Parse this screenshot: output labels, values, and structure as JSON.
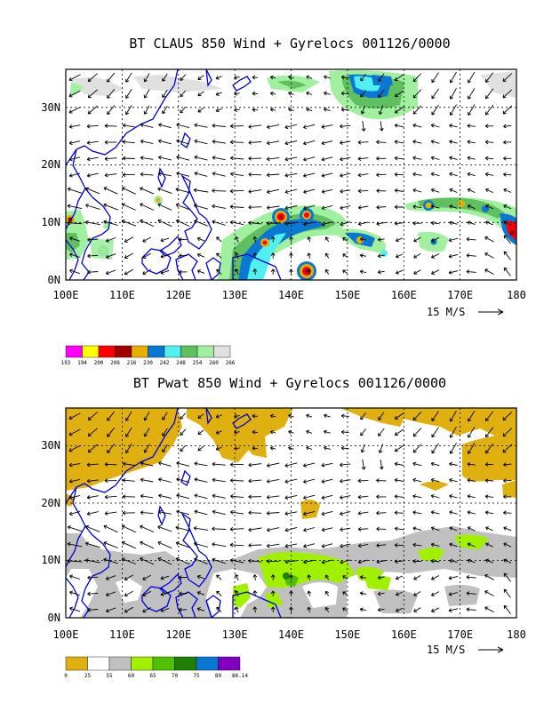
{
  "panels": [
    {
      "id": "claus",
      "title": "BT CLAUS 850 Wind + Gyrelocs 001126/0000",
      "x_ticks": [
        "100E",
        "110E",
        "120E",
        "130E",
        "140E",
        "150E",
        "160E",
        "170E",
        "180"
      ],
      "y_ticks": [
        "0N",
        "10N",
        "20N",
        "30N"
      ],
      "vector_label": "15 M/S",
      "colorbar": {
        "labels": [
          "193",
          "194",
          "200",
          "208",
          "216",
          "230",
          "242",
          "248",
          "254",
          "260",
          "266"
        ],
        "colors": [
          "#ff00ff",
          "#ffff00",
          "#ff0000",
          "#a00000",
          "#e6b000",
          "#0a78d2",
          "#50f0f0",
          "#60c060",
          "#a0f0a0",
          "#e0e0e0"
        ]
      }
    },
    {
      "id": "pwat",
      "title": "BT Pwat 850 Wind + Gyrelocs 001126/0000",
      "x_ticks": [
        "100E",
        "110E",
        "120E",
        "130E",
        "140E",
        "150E",
        "160E",
        "170E",
        "180"
      ],
      "y_ticks": [
        "0N",
        "10N",
        "20N",
        "30N"
      ],
      "vector_label": "15 M/S",
      "colorbar": {
        "labels": [
          "0",
          "25",
          "55",
          "60",
          "65",
          "70",
          "75",
          "80",
          "86.14"
        ],
        "colors": [
          "#e0b010",
          "#ffffff",
          "#c0c0c0",
          "#a0f000",
          "#50c000",
          "#208000",
          "#0a78d2",
          "#8000c0"
        ]
      }
    }
  ],
  "colors": {
    "coastline": "#0000dd",
    "arrows": "#000000"
  }
}
